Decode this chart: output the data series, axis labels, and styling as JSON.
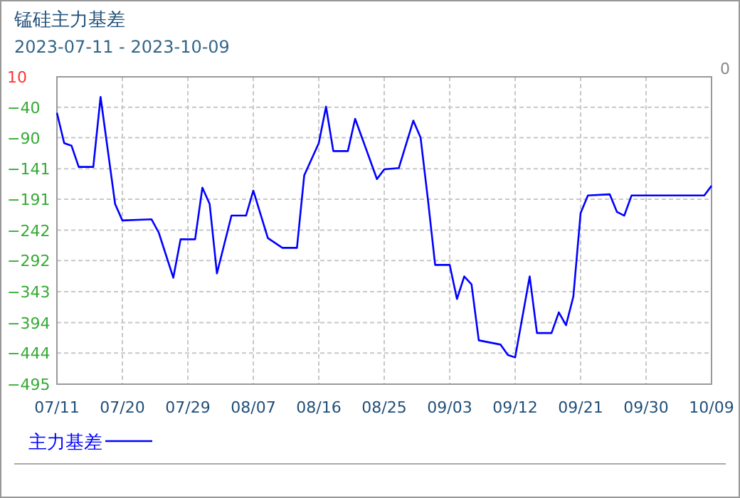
{
  "chart_data": {
    "type": "line",
    "title": "锰硅主力基差",
    "subtitle": "2023-07-11 - 2023-10-09",
    "x": [
      "2023-07-11",
      "2023-07-12",
      "2023-07-13",
      "2023-07-14",
      "2023-07-16",
      "2023-07-17",
      "2023-07-19",
      "2023-07-20",
      "2023-07-24",
      "2023-07-25",
      "2023-07-27",
      "2023-07-28",
      "2023-07-30",
      "2023-07-31",
      "2023-08-01",
      "2023-08-02",
      "2023-08-04",
      "2023-08-06",
      "2023-08-07",
      "2023-08-09",
      "2023-08-11",
      "2023-08-13",
      "2023-08-14",
      "2023-08-16",
      "2023-08-17",
      "2023-08-18",
      "2023-08-20",
      "2023-08-21",
      "2023-08-24",
      "2023-08-25",
      "2023-08-27",
      "2023-08-29",
      "2023-08-30",
      "2023-08-31",
      "2023-09-01",
      "2023-09-03",
      "2023-09-04",
      "2023-09-05",
      "2023-09-06",
      "2023-09-07",
      "2023-09-10",
      "2023-09-11",
      "2023-09-12",
      "2023-09-14",
      "2023-09-15",
      "2023-09-17",
      "2023-09-18",
      "2023-09-19",
      "2023-09-20",
      "2023-09-21",
      "2023-09-22",
      "2023-09-25",
      "2023-09-26",
      "2023-09-27",
      "2023-09-28",
      "2023-10-08",
      "2023-10-09"
    ],
    "series": [
      {
        "name": "主力基差",
        "color": "#0000ff",
        "values": [
          -49,
          -99,
          -103,
          -138,
          -138,
          -23,
          -199,
          -226,
          -224,
          -246,
          -320,
          -257,
          -257,
          -172,
          -199,
          -313,
          -218,
          -218,
          -177,
          -255,
          -271,
          -271,
          -152,
          -99,
          -39,
          -112,
          -112,
          -59,
          -158,
          -142,
          -140,
          -62,
          -90,
          -191,
          -299,
          -299,
          -355,
          -318,
          -331,
          -423,
          -430,
          -447,
          -451,
          -318,
          -411,
          -411,
          -377,
          -398,
          -351,
          -214,
          -185,
          -183,
          -212,
          -218,
          -185,
          -185,
          -169
        ]
      }
    ],
    "xlim": [
      "2023-07-11",
      "2023-10-09"
    ],
    "xticks": [
      {
        "value": "2023-07-11",
        "label": "07/11"
      },
      {
        "value": "2023-07-20",
        "label": "07/20"
      },
      {
        "value": "2023-07-29",
        "label": "07/29"
      },
      {
        "value": "2023-08-07",
        "label": "08/07"
      },
      {
        "value": "2023-08-16",
        "label": "08/16"
      },
      {
        "value": "2023-08-25",
        "label": "08/25"
      },
      {
        "value": "2023-09-03",
        "label": "09/03"
      },
      {
        "value": "2023-09-12",
        "label": "09/12"
      },
      {
        "value": "2023-09-21",
        "label": "09/21"
      },
      {
        "value": "2023-09-30",
        "label": "09/30"
      },
      {
        "value": "2023-10-09",
        "label": "10/09"
      }
    ],
    "ylim": [
      -495,
      10
    ],
    "yticks": [
      10,
      -40,
      -90,
      -141,
      -191,
      -242,
      -292,
      -343,
      -394,
      -444,
      -495
    ],
    "annotations": [
      "0"
    ],
    "grid": true,
    "legend": "bottom left",
    "line_style": "solid"
  }
}
